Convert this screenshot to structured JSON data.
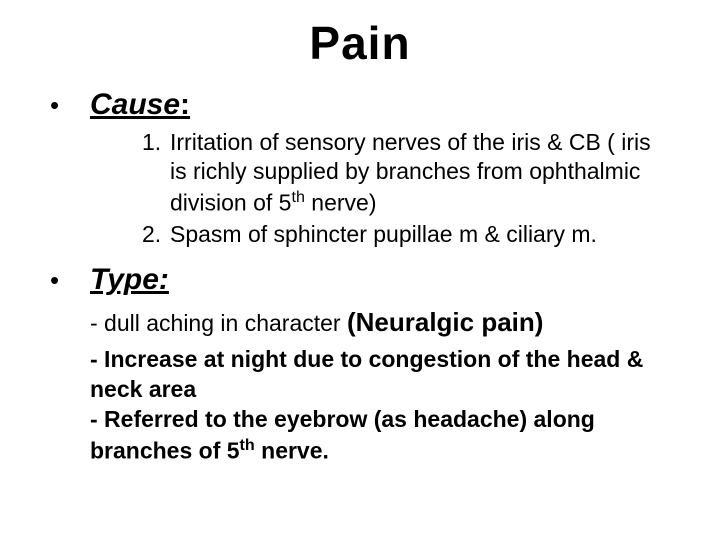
{
  "title": "Pain",
  "sections": {
    "cause": {
      "heading": "Cause",
      "colon": ":",
      "items": [
        {
          "num": "1.",
          "text_html": "Irritation of sensory nerves of the iris & CB ( iris is richly supplied by branches from ophthalmic division of 5<sup>th</sup> nerve)"
        },
        {
          "num": "2.",
          "text_html": "Spasm of sphincter pupillae m & ciliary m."
        }
      ]
    },
    "type": {
      "heading": "Type:",
      "line1_prefix": "- dull aching in character ",
      "line1_emph": "(Neuralgic pain)",
      "rest_html": "- Increase at night due to congestion of the head & neck area<br>- Referred to the eyebrow (as headache) along branches of 5<sup>th</sup> nerve."
    }
  },
  "colors": {
    "text": "#000000",
    "background": "#ffffff"
  },
  "fontsizes": {
    "title": 46,
    "heading": 30,
    "body": 23,
    "emph": 26
  }
}
